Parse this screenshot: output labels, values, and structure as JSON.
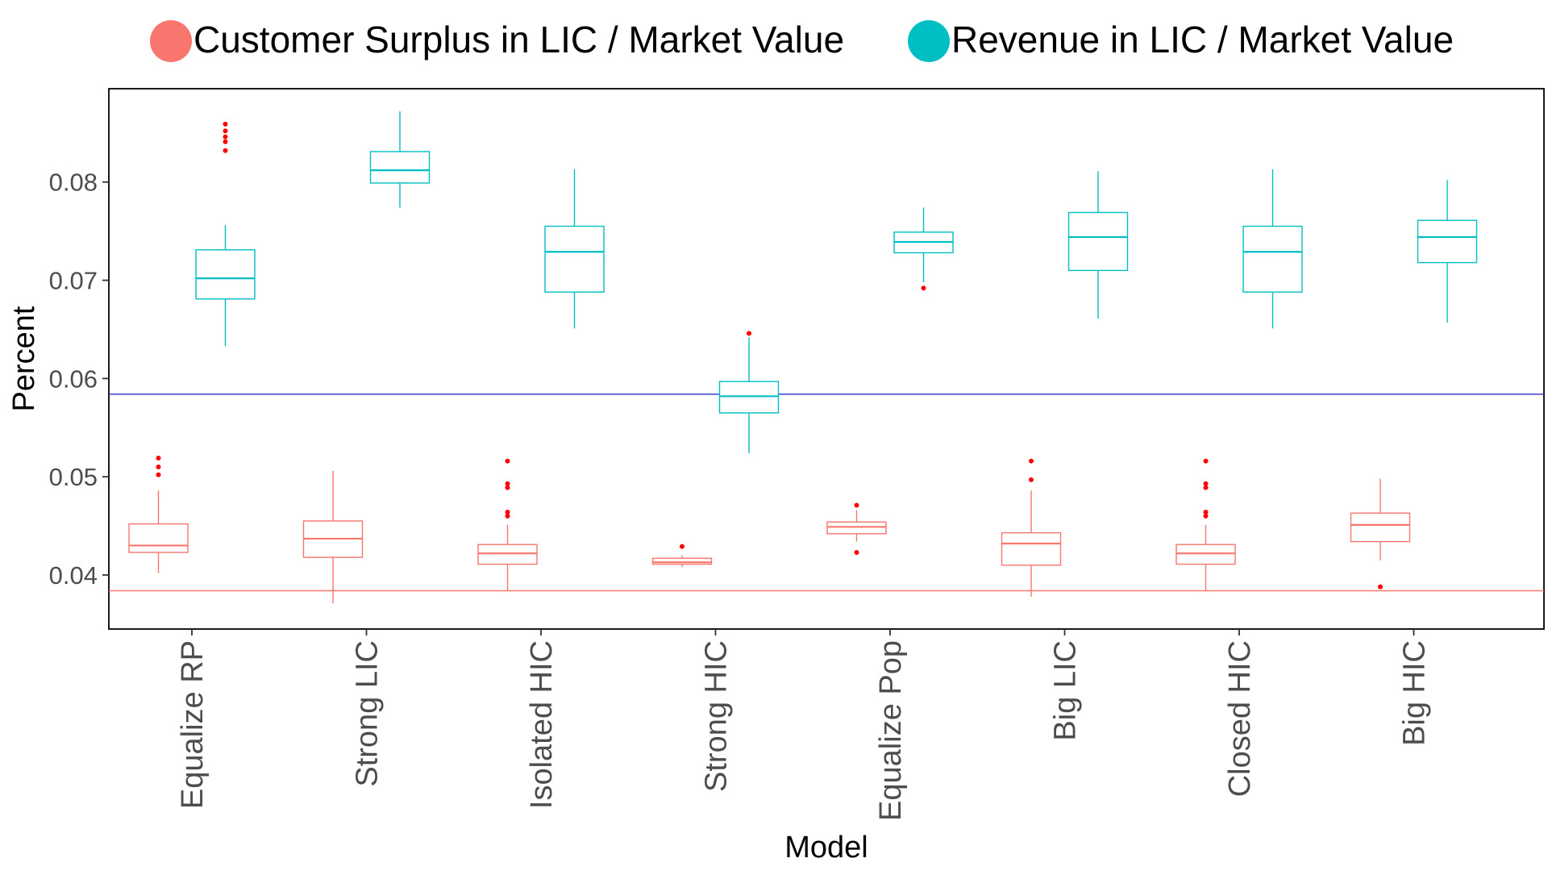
{
  "chart_data": {
    "type": "box",
    "title": "",
    "xlabel": "Model",
    "ylabel": "Percent",
    "ylim": [
      0.0345,
      0.0895
    ],
    "yticks": [
      {
        "value": 0.04,
        "label": "0.04"
      },
      {
        "value": 0.05,
        "label": "0.05"
      },
      {
        "value": 0.06,
        "label": "0.06"
      },
      {
        "value": 0.07,
        "label": "0.07"
      },
      {
        "value": 0.08,
        "label": "0.08"
      }
    ],
    "categories": [
      "Equalize RP",
      "Strong LIC",
      "Isolated HIC",
      "Strong HIC",
      "Equalize Pop",
      "Big LIC",
      "Closed HIC",
      "Big HIC"
    ],
    "legend_position": "top",
    "outlier_color": "#FF0000",
    "grid": false,
    "series": [
      {
        "name": "Customer Surplus in LIC / Market Value",
        "color": "#F8766D",
        "reference_line": 0.0384,
        "boxes": [
          {
            "whisker_low": 0.0402,
            "q1": 0.0423,
            "median": 0.043,
            "q3": 0.0452,
            "whisker_high": 0.0486,
            "outliers": [
              0.0502,
              0.051,
              0.0519
            ]
          },
          {
            "whisker_low": 0.0371,
            "q1": 0.0418,
            "median": 0.0437,
            "q3": 0.0455,
            "whisker_high": 0.0506,
            "outliers": []
          },
          {
            "whisker_low": 0.0384,
            "q1": 0.0411,
            "median": 0.0422,
            "q3": 0.0431,
            "whisker_high": 0.0451,
            "outliers": [
              0.046,
              0.0464,
              0.0489,
              0.0493,
              0.0516
            ]
          },
          {
            "whisker_low": 0.0408,
            "q1": 0.0411,
            "median": 0.0413,
            "q3": 0.0417,
            "whisker_high": 0.042,
            "outliers": [
              0.0429
            ]
          },
          {
            "whisker_low": 0.0434,
            "q1": 0.0442,
            "median": 0.0449,
            "q3": 0.0454,
            "whisker_high": 0.0466,
            "outliers": [
              0.0423,
              0.0471
            ]
          },
          {
            "whisker_low": 0.0378,
            "q1": 0.041,
            "median": 0.0432,
            "q3": 0.0443,
            "whisker_high": 0.0486,
            "outliers": [
              0.0497,
              0.0516
            ]
          },
          {
            "whisker_low": 0.0384,
            "q1": 0.0411,
            "median": 0.0422,
            "q3": 0.0431,
            "whisker_high": 0.0451,
            "outliers": [
              0.046,
              0.0464,
              0.0489,
              0.0493,
              0.0516
            ]
          },
          {
            "whisker_low": 0.0415,
            "q1": 0.0434,
            "median": 0.0451,
            "q3": 0.0463,
            "whisker_high": 0.0498,
            "outliers": [
              0.0388
            ]
          }
        ]
      },
      {
        "name": "Revenue in LIC / Market Value",
        "color": "#00BFC4",
        "reference_line": 0.0584,
        "boxes": [
          {
            "whisker_low": 0.0633,
            "q1": 0.0681,
            "median": 0.0702,
            "q3": 0.0731,
            "whisker_high": 0.0756,
            "outliers": [
              0.0832,
              0.0841,
              0.0846,
              0.0852,
              0.0859
            ]
          },
          {
            "whisker_low": 0.0774,
            "q1": 0.0799,
            "median": 0.0812,
            "q3": 0.0831,
            "whisker_high": 0.0872,
            "outliers": []
          },
          {
            "whisker_low": 0.0651,
            "q1": 0.0688,
            "median": 0.0729,
            "q3": 0.0755,
            "whisker_high": 0.0813,
            "outliers": []
          },
          {
            "whisker_low": 0.0524,
            "q1": 0.0565,
            "median": 0.0582,
            "q3": 0.0597,
            "whisker_high": 0.0642,
            "outliers": [
              0.0646
            ]
          },
          {
            "whisker_low": 0.0698,
            "q1": 0.0728,
            "median": 0.0739,
            "q3": 0.0749,
            "whisker_high": 0.0774,
            "outliers": [
              0.0692
            ]
          },
          {
            "whisker_low": 0.0661,
            "q1": 0.071,
            "median": 0.0744,
            "q3": 0.0769,
            "whisker_high": 0.0811,
            "outliers": []
          },
          {
            "whisker_low": 0.0651,
            "q1": 0.0688,
            "median": 0.0729,
            "q3": 0.0755,
            "whisker_high": 0.0813,
            "outliers": []
          },
          {
            "whisker_low": 0.0657,
            "q1": 0.0718,
            "median": 0.0744,
            "q3": 0.0761,
            "whisker_high": 0.0802,
            "outliers": []
          }
        ]
      }
    ],
    "reference_line_colors": [
      "#F8766D",
      "#2B2BCC"
    ]
  }
}
